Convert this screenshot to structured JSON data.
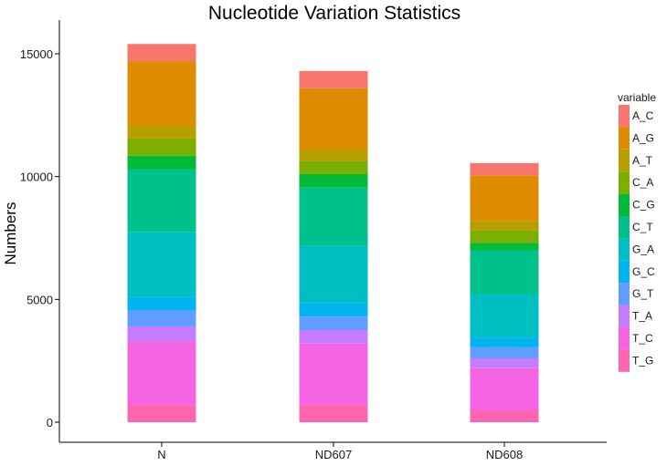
{
  "chart_data": {
    "type": "bar",
    "stacked": true,
    "title": "Nucleotide Variation Statistics",
    "xlabel": "",
    "ylabel": "Numbers",
    "ylim": [
      0,
      16000
    ],
    "yticks": [
      0,
      5000,
      10000,
      15000
    ],
    "ytick_labels": [
      "0",
      "5000",
      "10000",
      "15000"
    ],
    "categories": [
      "N",
      "ND607",
      "ND608"
    ],
    "legend_title": "variable",
    "legend_position": "right",
    "series": [
      {
        "name": "A_C",
        "color": "#F8766D",
        "values": [
          700,
          700,
          500
        ]
      },
      {
        "name": "A_G",
        "color": "#DE8C00",
        "values": [
          2650,
          2500,
          1850
        ]
      },
      {
        "name": "A_T",
        "color": "#B79F00",
        "values": [
          500,
          450,
          400
        ]
      },
      {
        "name": "C_A",
        "color": "#7CAE00",
        "values": [
          700,
          550,
          500
        ]
      },
      {
        "name": "C_G",
        "color": "#00BA38",
        "values": [
          550,
          550,
          300
        ]
      },
      {
        "name": "C_T",
        "color": "#00C08B",
        "values": [
          2550,
          2350,
          1800
        ]
      },
      {
        "name": "G_A",
        "color": "#00BFC4",
        "values": [
          2650,
          2350,
          1750
        ]
      },
      {
        "name": "G_C",
        "color": "#00B4F0",
        "values": [
          550,
          550,
          400
        ]
      },
      {
        "name": "G_T",
        "color": "#619CFF",
        "values": [
          650,
          550,
          450
        ]
      },
      {
        "name": "T_A",
        "color": "#C77CFF",
        "values": [
          600,
          550,
          400
        ]
      },
      {
        "name": "T_C",
        "color": "#F564E3",
        "values": [
          2600,
          2500,
          1700
        ]
      },
      {
        "name": "T_G",
        "color": "#FF64B0",
        "values": [
          700,
          700,
          500
        ]
      }
    ]
  }
}
